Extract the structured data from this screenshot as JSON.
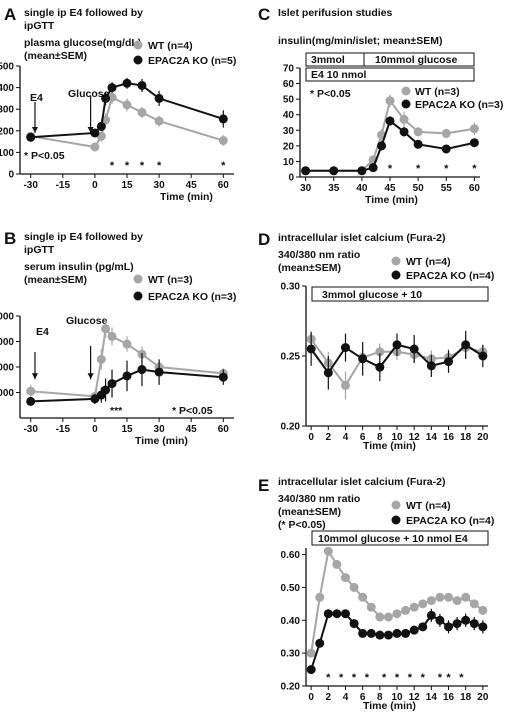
{
  "figure": {
    "panels": [
      "A",
      "B",
      "C",
      "D",
      "E"
    ]
  },
  "colors": {
    "wt": "#a6a6a6",
    "ko": "#111111",
    "axis": "#111111"
  },
  "chart_data": [
    {
      "id": "A",
      "type": "line",
      "title_lines": [
        "single ip E4 followed by",
        "ipGTT"
      ],
      "ylabel_lines": [
        "plasma glucose(mg/dL)",
        "(mean±SEM)"
      ],
      "xlabel": "Time (min)",
      "xlim": [
        -35,
        65
      ],
      "ylim": [
        0,
        500
      ],
      "xticks": [
        -30,
        -15,
        0,
        15,
        30,
        45,
        60
      ],
      "yticks": [
        0,
        100,
        200,
        300,
        400,
        500
      ],
      "annotations": [
        "E4",
        "Glucose",
        "* P<0.05"
      ],
      "event_arrows_x": [
        -28,
        -2
      ],
      "significance_x": [
        8,
        15,
        22,
        30,
        60
      ],
      "legend_placement": "top-right",
      "series": [
        {
          "name": "WT (n=4)",
          "color": "wt",
          "x": [
            -30,
            0,
            3,
            5,
            8,
            15,
            22,
            30,
            60
          ],
          "y": [
            175,
            125,
            175,
            250,
            355,
            320,
            285,
            245,
            155
          ],
          "err": [
            15,
            15,
            25,
            30,
            30,
            30,
            25,
            25,
            25
          ]
        },
        {
          "name": "EPAC2A KO (n=5)",
          "color": "ko",
          "x": [
            -30,
            0,
            3,
            5,
            8,
            15,
            22,
            30,
            60
          ],
          "y": [
            170,
            190,
            220,
            350,
            400,
            420,
            410,
            350,
            255
          ],
          "err": [
            10,
            15,
            20,
            30,
            25,
            25,
            30,
            35,
            40
          ]
        }
      ]
    },
    {
      "id": "B",
      "type": "line",
      "title_lines": [
        "single ip E4 followed by",
        "ipGTT"
      ],
      "ylabel_lines": [
        "serum insulin (pg/mL)",
        "(mean±SEM)"
      ],
      "xlabel": "Time (min)",
      "xlim": [
        -35,
        65
      ],
      "ylim": [
        0,
        4000
      ],
      "xticks": [
        -30,
        -15,
        0,
        15,
        30,
        45,
        60
      ],
      "yticks": [
        1000,
        2000,
        3000,
        4000
      ],
      "yticklabels": [
        "1,000",
        "2,000",
        "3,000",
        "4,000"
      ],
      "annotations": [
        "E4",
        "Glucose",
        "***",
        "* P<0.05"
      ],
      "event_arrows_x": [
        -28,
        -2
      ],
      "legend_placement": "top-right",
      "series": [
        {
          "name": "WT (n=3)",
          "color": "wt",
          "x": [
            -30,
            0,
            3,
            5,
            8,
            15,
            22,
            30,
            60
          ],
          "y": [
            1050,
            850,
            2300,
            3500,
            3200,
            2900,
            2500,
            2000,
            1750
          ],
          "err": [
            250,
            200,
            400,
            350,
            350,
            300,
            300,
            250,
            200
          ]
        },
        {
          "name": "EPAC2A KO (n=3)",
          "color": "ko",
          "x": [
            -30,
            0,
            3,
            5,
            8,
            15,
            22,
            30,
            60
          ],
          "y": [
            650,
            750,
            900,
            1100,
            1350,
            1650,
            1900,
            1800,
            1600
          ],
          "err": [
            150,
            200,
            300,
            450,
            550,
            600,
            650,
            500,
            300
          ]
        }
      ]
    },
    {
      "id": "C",
      "type": "line",
      "title_lines": [
        "Islet perifusion studies"
      ],
      "ylabel_lines": [
        "insulin(mg/min/islet; mean±SEM)"
      ],
      "xlabel": "Time (min)",
      "xlim": [
        29,
        61
      ],
      "ylim": [
        0,
        70
      ],
      "xticks": [
        30,
        35,
        40,
        45,
        50,
        55,
        60
      ],
      "yticks": [
        0,
        10,
        20,
        30,
        40,
        50,
        60,
        70
      ],
      "boxes": [
        "3mmol",
        "10mmol glucose",
        "E4 10 nmol"
      ],
      "annotations": [
        "* P<0.05"
      ],
      "significance_x": [
        42,
        45,
        50,
        55,
        60
      ],
      "legend_placement": "right",
      "series": [
        {
          "name": "WT (n=3)",
          "color": "wt",
          "x": [
            30,
            35,
            40,
            42,
            43.5,
            45,
            47.5,
            50,
            55,
            60
          ],
          "y": [
            4,
            4,
            4,
            11,
            27,
            49,
            37,
            29,
            28,
            31
          ],
          "err": [
            1,
            1,
            1,
            2,
            4,
            4,
            5,
            3,
            3,
            4
          ]
        },
        {
          "name": "EPAC2A KO (n=3)",
          "color": "ko",
          "x": [
            30,
            35,
            40,
            42,
            43.5,
            45,
            47.5,
            50,
            55,
            60
          ],
          "y": [
            4,
            4,
            4,
            6,
            20,
            36,
            29,
            21,
            18,
            22
          ],
          "err": [
            1,
            1,
            1,
            1,
            3,
            3,
            3,
            2,
            2,
            2
          ]
        }
      ]
    },
    {
      "id": "D",
      "type": "line",
      "title_lines": [
        "intracellular islet calcium (Fura-2)"
      ],
      "ylabel_lines": [
        "340/380 nm ratio",
        "(mean±SEM)"
      ],
      "xlabel": "Time (min)",
      "xlim": [
        -0.6,
        20.6
      ],
      "ylim": [
        0.2,
        0.3
      ],
      "xticks": [
        0,
        2,
        4,
        6,
        8,
        10,
        12,
        14,
        16,
        18,
        20
      ],
      "yticks": [
        0.2,
        0.25,
        0.3
      ],
      "yticklabels": [
        "0.20",
        "0.25",
        "0.30"
      ],
      "boxes": [
        "3mmol glucose + 10"
      ],
      "legend_placement": "top-right",
      "series": [
        {
          "name": "WT (n=4)",
          "color": "wt",
          "x": [
            0,
            2,
            4,
            6,
            8,
            10,
            12,
            14,
            16,
            18,
            20
          ],
          "y": [
            0.262,
            0.245,
            0.229,
            0.249,
            0.253,
            0.253,
            0.251,
            0.248,
            0.249,
            0.256,
            0.253
          ],
          "err": [
            0.006,
            0.008,
            0.01,
            0.006,
            0.006,
            0.006,
            0.006,
            0.006,
            0.006,
            0.008,
            0.005
          ]
        },
        {
          "name": "EPAC2A KO (n=4)",
          "color": "ko",
          "x": [
            0,
            2,
            4,
            6,
            8,
            10,
            12,
            14,
            16,
            18,
            20
          ],
          "y": [
            0.255,
            0.238,
            0.256,
            0.248,
            0.242,
            0.258,
            0.255,
            0.243,
            0.246,
            0.258,
            0.25
          ],
          "err": [
            0.012,
            0.012,
            0.01,
            0.012,
            0.01,
            0.008,
            0.01,
            0.008,
            0.008,
            0.01,
            0.008
          ]
        }
      ]
    },
    {
      "id": "E",
      "type": "line",
      "title_lines": [
        "intracellular islet calcium (Fura-2)"
      ],
      "ylabel_lines": [
        "340/380 nm ratio",
        "(mean±SEM)",
        "(* P<0.05)"
      ],
      "xlabel": "Time (min)",
      "xlim": [
        -0.6,
        20.6
      ],
      "ylim": [
        0.2,
        0.62
      ],
      "xticks": [
        0,
        2,
        4,
        6,
        8,
        10,
        12,
        14,
        16,
        18,
        20
      ],
      "yticks": [
        0.2,
        0.3,
        0.4,
        0.5,
        0.6
      ],
      "yticklabels": [
        "0.20",
        "0.30",
        "0.40",
        "0.50",
        "0.60"
      ],
      "boxes": [
        "10mmol glucose + 10 nmol E4"
      ],
      "significance_x": [
        2,
        3.5,
        5,
        6.5,
        8.5,
        10,
        11.5,
        13,
        15,
        16,
        17.5
      ],
      "legend_placement": "top-right",
      "series": [
        {
          "name": "WT (n=4)",
          "color": "wt",
          "x": [
            0,
            1,
            2,
            3,
            4,
            5,
            6,
            7,
            8,
            9,
            10,
            11,
            12,
            13,
            14,
            15,
            16,
            17,
            18,
            19,
            20
          ],
          "y": [
            0.3,
            0.47,
            0.61,
            0.57,
            0.53,
            0.5,
            0.47,
            0.44,
            0.41,
            0.41,
            0.42,
            0.43,
            0.44,
            0.45,
            0.46,
            0.47,
            0.47,
            0.46,
            0.47,
            0.45,
            0.43
          ],
          "err": [
            0.01,
            0.01,
            0.01,
            0.01,
            0.01,
            0.01,
            0.01,
            0.01,
            0.01,
            0.01,
            0.01,
            0.01,
            0.01,
            0.01,
            0.01,
            0.01,
            0.01,
            0.01,
            0.01,
            0.01,
            0.01
          ]
        },
        {
          "name": "EPAC2A KO (n=4)",
          "color": "ko",
          "x": [
            0,
            1,
            2,
            3,
            4,
            5,
            6,
            7,
            8,
            9,
            10,
            11,
            12,
            13,
            14,
            15,
            16,
            17,
            18,
            19,
            20
          ],
          "y": [
            0.25,
            0.33,
            0.42,
            0.42,
            0.42,
            0.39,
            0.36,
            0.36,
            0.355,
            0.355,
            0.36,
            0.36,
            0.37,
            0.38,
            0.415,
            0.4,
            0.38,
            0.39,
            0.4,
            0.39,
            0.38
          ],
          "err": [
            0.01,
            0.01,
            0.01,
            0.01,
            0.01,
            0.01,
            0.01,
            0.01,
            0.01,
            0.01,
            0.01,
            0.01,
            0.01,
            0.01,
            0.02,
            0.02,
            0.02,
            0.02,
            0.02,
            0.02,
            0.02
          ]
        }
      ]
    }
  ]
}
